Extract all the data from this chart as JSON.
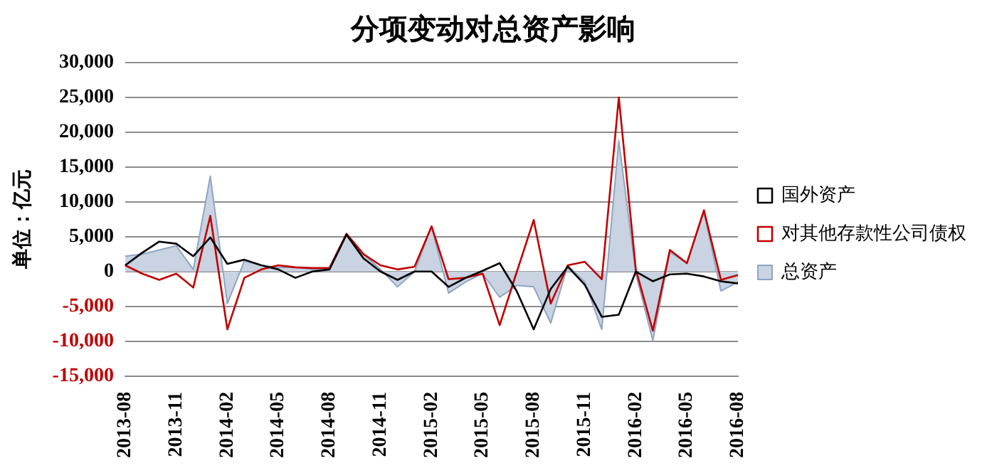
{
  "chart_data": {
    "type": "line",
    "title": "分项变动对总资产影响",
    "ylabel": "单位：亿元",
    "categories": [
      "2013-08",
      null,
      null,
      "2013-11",
      null,
      null,
      "2014-02",
      null,
      null,
      "2014-05",
      null,
      null,
      "2014-08",
      null,
      null,
      "2014-11",
      null,
      null,
      "2015-02",
      null,
      null,
      "2015-05",
      null,
      null,
      "2015-08",
      null,
      null,
      "2015-11",
      null,
      null,
      "2016-02",
      null,
      null,
      "2016-05",
      null,
      null,
      "2016-08"
    ],
    "series": [
      {
        "name": "国外资产",
        "color": "#000000",
        "values": [
          900,
          2700,
          4300,
          4000,
          2200,
          4900,
          1100,
          1700,
          900,
          300,
          -900,
          0,
          300,
          5300,
          1900,
          0,
          -1200,
          0,
          0,
          -2200,
          -900,
          100,
          1200,
          -2800,
          -8300,
          -2500,
          700,
          -1900,
          -6500,
          -6200,
          0,
          -1400,
          -400,
          -300,
          -700,
          -1400,
          -1700
        ]
      },
      {
        "name": "对其他存款性公司债权",
        "color": "#c00000",
        "values": [
          900,
          -300,
          -1200,
          -300,
          -2300,
          8000,
          -8300,
          -900,
          300,
          900,
          600,
          500,
          500,
          5400,
          2500,
          900,
          300,
          700,
          6500,
          -1100,
          -900,
          -300,
          -7700,
          -100,
          7400,
          -4600,
          900,
          1400,
          -1100,
          25000,
          300,
          -8500,
          3100,
          1200,
          8800,
          -1200,
          -500
        ]
      },
      {
        "name": "总资产",
        "type": "area",
        "color": "#c9d3e1",
        "values": [
          2200,
          2500,
          3100,
          3700,
          300,
          13700,
          -4600,
          1500,
          900,
          600,
          600,
          300,
          300,
          5500,
          2500,
          300,
          -2200,
          0,
          6500,
          -3100,
          -1500,
          -300,
          -3700,
          -2000,
          -2200,
          -7400,
          900,
          -1500,
          -8300,
          18800,
          -300,
          -9900,
          2800,
          1200,
          8600,
          -2800,
          -1500
        ]
      }
    ],
    "ylim": [
      -15000,
      30000
    ],
    "yticks": [
      {
        "value": -15000,
        "label": "-15,000"
      },
      {
        "value": -10000,
        "label": "-10,000"
      },
      {
        "value": -5000,
        "label": "-5,000"
      },
      0,
      {
        "value": 5000,
        "label": "5,000"
      },
      {
        "value": 10000,
        "label": "10,000"
      },
      {
        "value": 15000,
        "label": "15,000"
      },
      {
        "value": 20000,
        "label": "20,000"
      },
      {
        "value": 25000,
        "label": "25,000"
      },
      {
        "value": 30000,
        "label": "30,000"
      }
    ],
    "grid": "y",
    "legend": "right",
    "marker": "none"
  }
}
